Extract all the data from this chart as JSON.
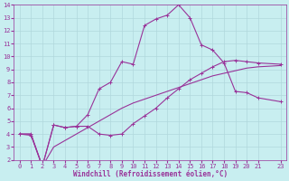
{
  "xlabel": "Windchill (Refroidissement éolien,°C)",
  "background_color": "#c8eef0",
  "grid_color": "#b0d8dc",
  "line_color": "#993399",
  "line1_x": [
    0,
    1,
    2,
    3,
    4,
    5,
    6,
    7,
    8,
    9,
    10,
    11,
    12,
    13,
    14,
    15,
    16,
    17,
    18,
    19,
    20,
    21,
    23
  ],
  "line1_y": [
    4.0,
    3.9,
    1.5,
    4.7,
    4.5,
    4.6,
    5.5,
    7.5,
    8.0,
    9.6,
    9.4,
    12.4,
    12.9,
    13.2,
    14.0,
    13.0,
    10.9,
    10.5,
    9.5,
    7.3,
    7.2,
    6.8,
    6.5
  ],
  "line2_x": [
    0,
    1,
    2,
    3,
    4,
    5,
    6,
    7,
    8,
    9,
    10,
    11,
    12,
    13,
    14,
    15,
    16,
    17,
    18,
    19,
    20,
    21,
    23
  ],
  "line2_y": [
    4.0,
    4.0,
    1.5,
    4.7,
    4.5,
    4.6,
    4.6,
    4.0,
    3.9,
    4.0,
    4.8,
    5.4,
    6.0,
    6.8,
    7.5,
    8.2,
    8.7,
    9.2,
    9.6,
    9.7,
    9.6,
    9.5,
    9.4
  ],
  "line3_x": [
    0,
    1,
    2,
    3,
    4,
    5,
    6,
    7,
    8,
    9,
    10,
    11,
    12,
    13,
    14,
    15,
    16,
    17,
    18,
    19,
    20,
    21,
    23
  ],
  "line3_y": [
    4.0,
    4.0,
    1.5,
    3.0,
    3.5,
    4.0,
    4.5,
    5.0,
    5.5,
    6.0,
    6.4,
    6.7,
    7.0,
    7.3,
    7.6,
    7.9,
    8.2,
    8.5,
    8.7,
    8.9,
    9.1,
    9.2,
    9.3
  ],
  "xlim": [
    -0.5,
    23.5
  ],
  "ylim": [
    2,
    14
  ],
  "xticks": [
    0,
    1,
    2,
    3,
    4,
    5,
    6,
    7,
    8,
    9,
    10,
    11,
    12,
    13,
    14,
    15,
    16,
    17,
    18,
    19,
    20,
    21,
    23
  ],
  "yticks": [
    2,
    3,
    4,
    5,
    6,
    7,
    8,
    9,
    10,
    11,
    12,
    13,
    14
  ],
  "tick_fontsize": 5,
  "xlabel_fontsize": 5.5
}
